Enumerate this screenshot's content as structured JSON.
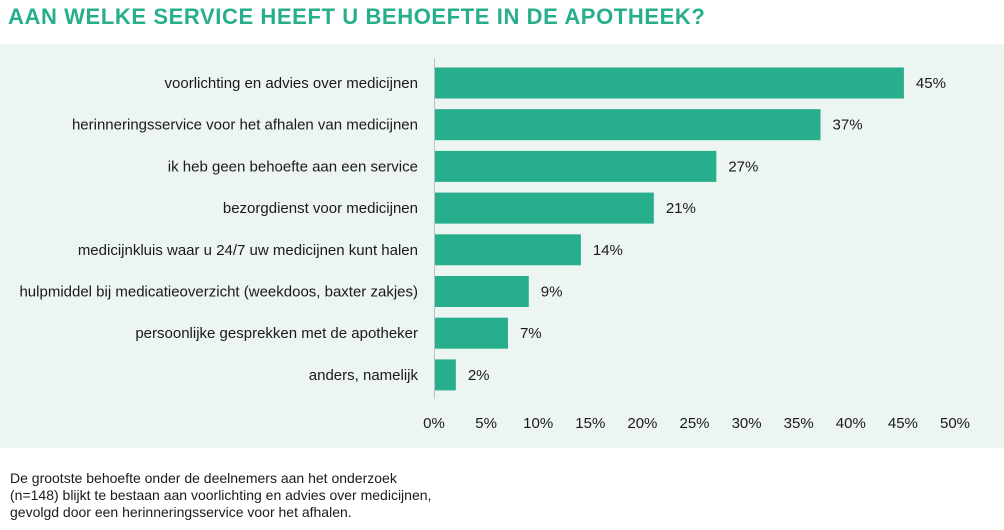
{
  "title": "AAN WELKE SERVICE HEEFT U BEHOEFTE IN DE APOTHEEK?",
  "footnote": [
    "De grootste behoefte onder de deelnemers aan het onderzoek",
    "(n=148) blijkt te bestaan aan voorlichting en advies over medicijnen,",
    "gevolgd door een herinneringsservice voor het afhalen."
  ],
  "colors": {
    "bar": "#27AE8C",
    "title": "#27AE8C",
    "panel": "#ECF5F2"
  },
  "chart_data": {
    "type": "bar",
    "orientation": "horizontal",
    "categories": [
      "voorlichting en advies over medicijnen",
      "herinneringsservice voor het afhalen van medicijnen",
      "ik heb geen behoefte aan een service",
      "bezorgdienst voor medicijnen",
      "medicijnkluis waar u 24/7 uw medicijnen kunt halen",
      "hulpmiddel bij medicatieoverzicht (weekdoos, baxter zakjes)",
      "persoonlijke gesprekken met de apotheker",
      "anders, namelijk"
    ],
    "values": [
      45,
      37,
      27,
      21,
      14,
      9,
      7,
      2
    ],
    "value_labels": [
      "45%",
      "37%",
      "27%",
      "21%",
      "14%",
      "9%",
      "7%",
      "2%"
    ],
    "xlim": [
      0,
      50
    ],
    "xticks": [
      0,
      5,
      10,
      15,
      20,
      25,
      30,
      35,
      40,
      45,
      50
    ],
    "xtick_labels": [
      "0%",
      "5%",
      "10%",
      "15%",
      "20%",
      "25%",
      "30%",
      "35%",
      "40%",
      "45%",
      "50%"
    ],
    "grid": false
  }
}
